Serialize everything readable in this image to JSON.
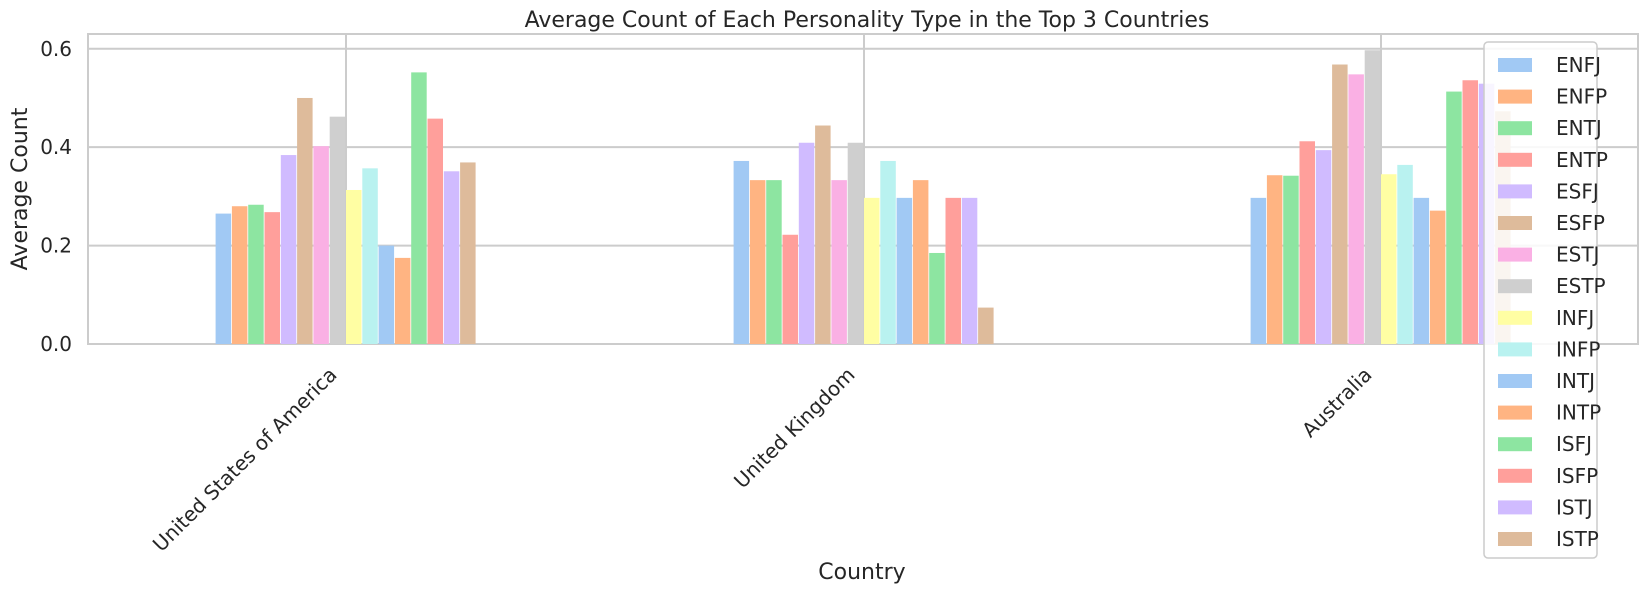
{
  "chart_data": {
    "type": "bar",
    "title": "Average Count of Each Personality Type in the Top 3 Countries",
    "xlabel": "Country",
    "ylabel": "Average Count",
    "categories": [
      "United States of America",
      "United Kingdom",
      "Australia"
    ],
    "ylim": [
      0,
      0.63
    ],
    "yticks": [
      "0.0",
      "0.2",
      "0.4",
      "0.6"
    ],
    "ytick_values": [
      0,
      0.2,
      0.4,
      0.6
    ],
    "grid": true,
    "legend_position": "right",
    "series": [
      {
        "name": "ENFJ",
        "color": "#a1c9f4",
        "values": [
          0.265,
          0.372,
          0.297
        ]
      },
      {
        "name": "ENFP",
        "color": "#ffb482",
        "values": [
          0.28,
          0.333,
          0.343
        ]
      },
      {
        "name": "ENTJ",
        "color": "#8de5a1",
        "values": [
          0.283,
          0.333,
          0.342
        ]
      },
      {
        "name": "ENTP",
        "color": "#ff9f9b",
        "values": [
          0.268,
          0.222,
          0.412
        ]
      },
      {
        "name": "ESFJ",
        "color": "#d0bbff",
        "values": [
          0.384,
          0.409,
          0.394
        ]
      },
      {
        "name": "ESFP",
        "color": "#debb9b",
        "values": [
          0.5,
          0.444,
          0.568
        ]
      },
      {
        "name": "ESTJ",
        "color": "#fab0e4",
        "values": [
          0.402,
          0.333,
          0.548
        ]
      },
      {
        "name": "ESTP",
        "color": "#cfcfcf",
        "values": [
          0.462,
          0.409,
          0.597
        ]
      },
      {
        "name": "INFJ",
        "color": "#fffea3",
        "values": [
          0.313,
          0.297,
          0.345
        ]
      },
      {
        "name": "INFP",
        "color": "#b9f2f0",
        "values": [
          0.357,
          0.372,
          0.364
        ]
      },
      {
        "name": "INTJ",
        "color": "#a1c9f4",
        "values": [
          0.2,
          0.297,
          0.297
        ]
      },
      {
        "name": "INTP",
        "color": "#ffb482",
        "values": [
          0.175,
          0.333,
          0.271
        ]
      },
      {
        "name": "ISFJ",
        "color": "#8de5a1",
        "values": [
          0.552,
          0.185,
          0.513
        ]
      },
      {
        "name": "ISFP",
        "color": "#ff9f9b",
        "values": [
          0.458,
          0.297,
          0.536
        ]
      },
      {
        "name": "ISTJ",
        "color": "#d0bbff",
        "values": [
          0.351,
          0.297,
          0.529
        ]
      },
      {
        "name": "ISTP",
        "color": "#debb9b",
        "values": [
          0.369,
          0.074,
          0.473
        ]
      }
    ]
  }
}
